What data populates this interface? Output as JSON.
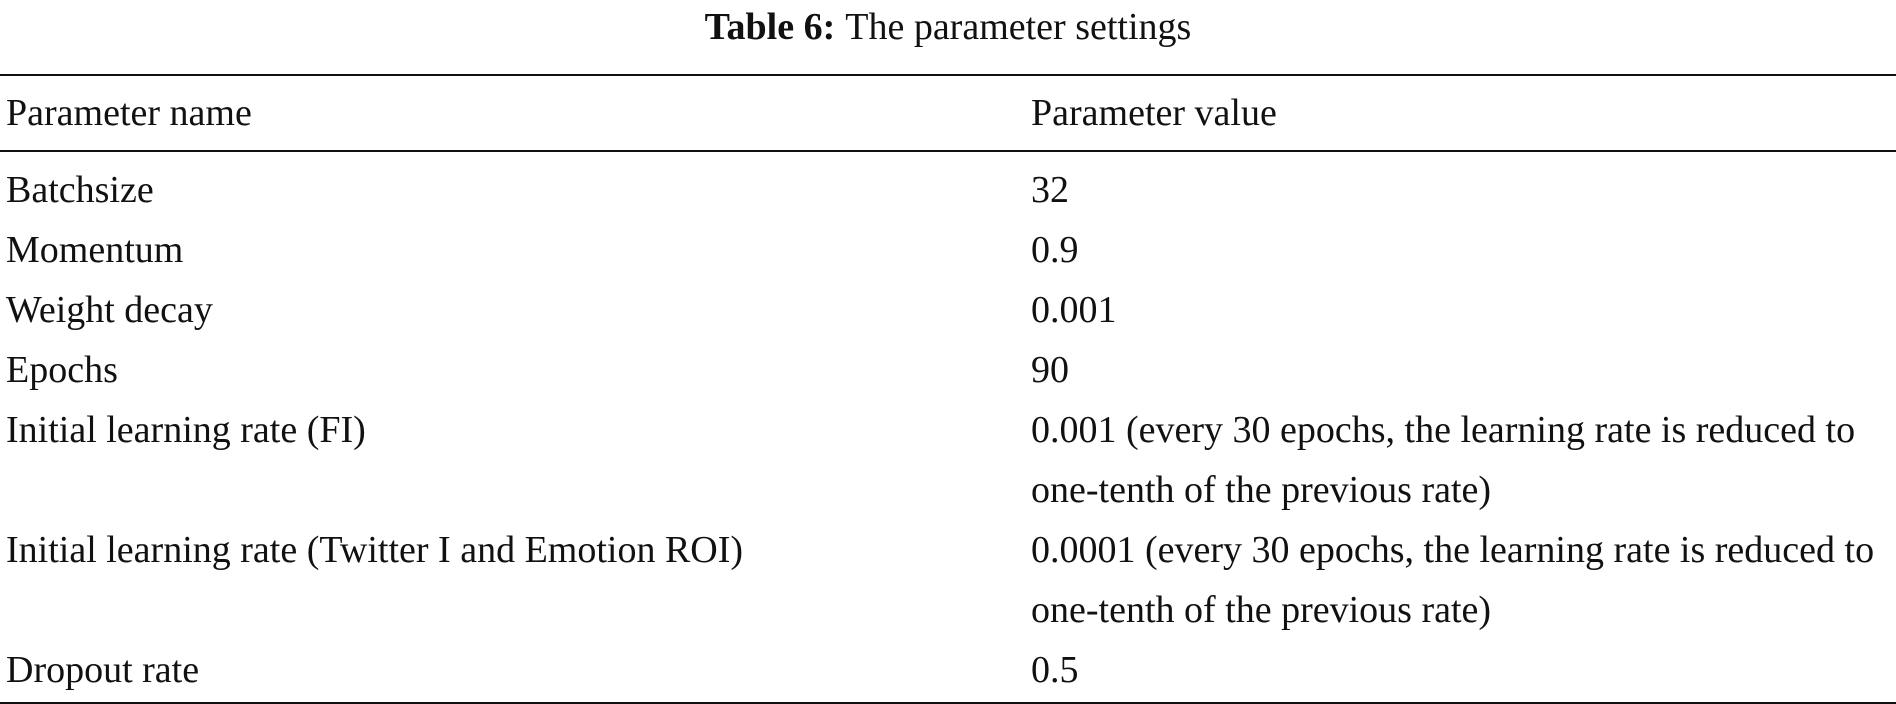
{
  "caption": {
    "label": "Table 6:",
    "text": "The parameter settings"
  },
  "table": {
    "header": [
      "Parameter name",
      "Parameter value"
    ],
    "rows": [
      [
        "Batchsize",
        "32"
      ],
      [
        "Momentum",
        "0.9"
      ],
      [
        "Weight decay",
        "0.001"
      ],
      [
        "Epochs",
        "90"
      ],
      [
        "Initial learning rate (FI)",
        "0.001 (every 30 epochs, the learning rate is reduced to one-tenth of the previous rate)"
      ],
      [
        "Initial learning rate (Twitter I and Emotion ROI)",
        "0.0001 (every 30 epochs, the learning rate is reduced to one-tenth of the previous rate)"
      ],
      [
        "Dropout rate",
        "0.5"
      ]
    ]
  }
}
